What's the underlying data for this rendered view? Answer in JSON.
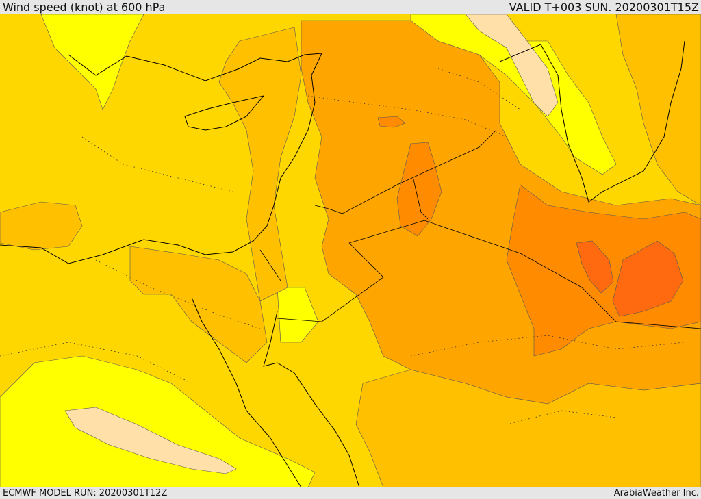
{
  "header": {
    "title": "Wind speed (knot) at 600 hPa",
    "valid": "VALID T+003 SUN. 20200301T15Z"
  },
  "footer": {
    "model_run": "ECMWF MODEL RUN: 20200301T12Z",
    "credit": "ArabiaWeather Inc."
  },
  "map": {
    "colors": {
      "pale": "#ffe0a8",
      "yellow": "#ffff00",
      "gold": "#ffd700",
      "amber": "#ffc000",
      "orange": "#ffa500",
      "dark_orange": "#ff8c00",
      "red_orange": "#ff6a10"
    }
  }
}
